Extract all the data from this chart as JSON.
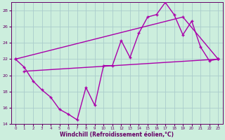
{
  "xlabel": "Windchill (Refroidissement éolien,°C)",
  "bg_color": "#cceedd",
  "line_color": "#aa00aa",
  "grid_color": "#aacccc",
  "xlim": [
    -0.5,
    23.5
  ],
  "ylim": [
    14,
    29
  ],
  "xticks": [
    0,
    1,
    2,
    3,
    4,
    5,
    6,
    7,
    8,
    9,
    10,
    11,
    12,
    13,
    14,
    15,
    16,
    17,
    18,
    19,
    20,
    21,
    22,
    23
  ],
  "yticks": [
    14,
    16,
    18,
    20,
    22,
    24,
    26,
    28
  ],
  "line1_x": [
    0,
    1,
    2,
    3,
    4,
    5,
    6,
    7,
    8,
    9,
    10,
    11,
    12,
    13,
    14,
    15,
    16,
    17,
    18,
    19,
    20,
    21,
    22,
    23
  ],
  "line1_y": [
    22,
    21,
    19.3,
    18.2,
    17.3,
    15.8,
    15.2,
    14.5,
    18.5,
    16.3,
    21.2,
    21.2,
    24.3,
    22.2,
    25.2,
    27.2,
    27.5,
    29,
    27.5,
    25,
    26.7,
    23.5,
    21.8,
    22
  ],
  "line2_x": [
    0,
    19,
    23
  ],
  "line2_y": [
    22,
    27.2,
    22
  ],
  "line3_x": [
    1,
    23
  ],
  "line3_y": [
    20.5,
    22
  ],
  "marker_size": 2.5,
  "line_width": 1.0
}
